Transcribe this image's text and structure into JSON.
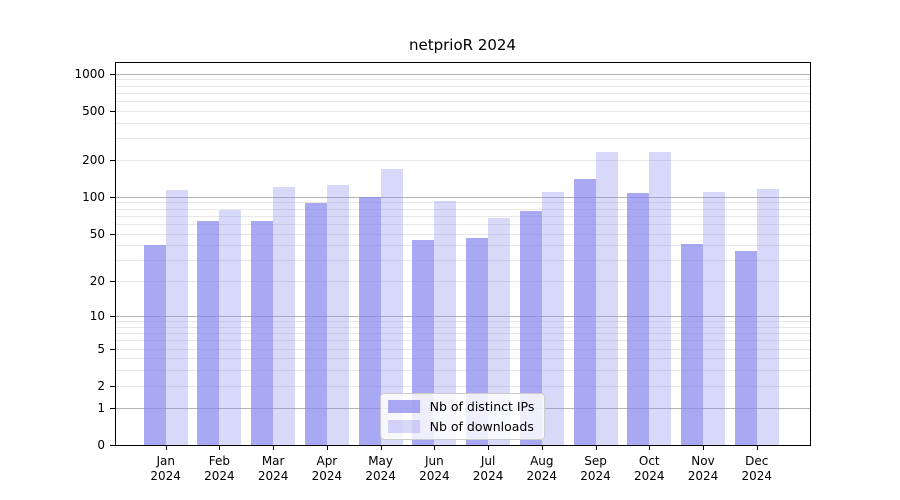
{
  "chart_data": {
    "type": "bar",
    "title": "netprioR 2024",
    "categories": [
      "Jan 2024",
      "Feb 2024",
      "Mar 2024",
      "Apr 2024",
      "May 2024",
      "Jun 2024",
      "Jul 2024",
      "Aug 2024",
      "Sep 2024",
      "Oct 2024",
      "Nov 2024",
      "Dec 2024"
    ],
    "series": [
      {
        "name": "Nb of distinct IPs",
        "color": "rgba(136,136,238,0.72)",
        "values": [
          40,
          63,
          63,
          89,
          100,
          44,
          46,
          77,
          140,
          107,
          41,
          36
        ]
      },
      {
        "name": "Nb of downloads",
        "color": "rgba(136,136,238,0.33)",
        "values": [
          114,
          78,
          120,
          125,
          170,
          93,
          67,
          110,
          230,
          230,
          109,
          117
        ]
      }
    ],
    "yscale": "log1p",
    "yticks": [
      1000,
      500,
      200,
      100,
      50,
      20,
      10,
      5,
      2,
      1,
      0
    ],
    "ylim": [
      0,
      1240
    ],
    "grid": true,
    "legend_position": "lower center",
    "colors": {
      "major_grid": "#b3b3b3",
      "minor_grid": "#e7e7e7",
      "spine": "#000000",
      "text": "#000000"
    }
  }
}
